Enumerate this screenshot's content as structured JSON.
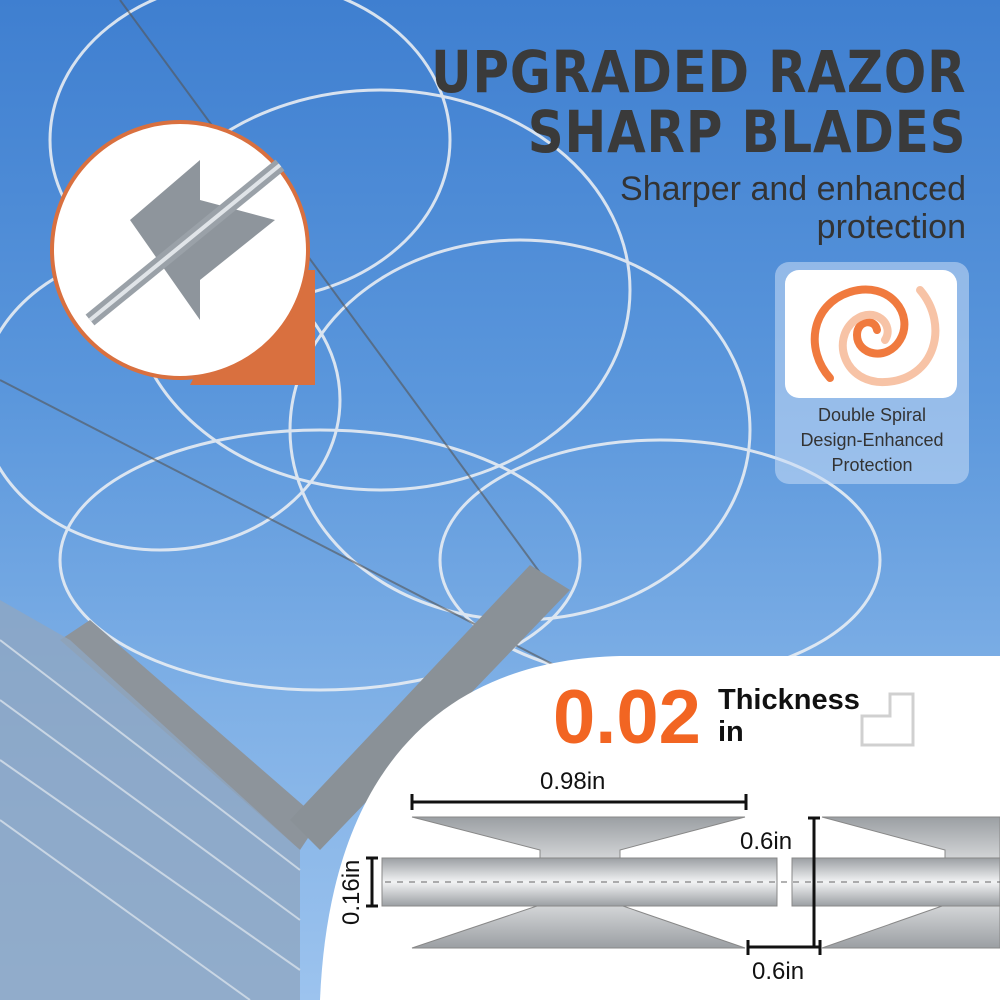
{
  "headline": {
    "line1": "UPGRADED RAZOR",
    "line2": "SHARP BLADES"
  },
  "subheadline": {
    "line1": "Sharper and enhanced",
    "line2": "protection"
  },
  "feature_card": {
    "icon": "double-spiral-icon",
    "caption_lines": [
      "Double Spiral",
      "Design-Enhanced",
      "Protection"
    ]
  },
  "thickness": {
    "value": "0.02",
    "label": "Thickness",
    "unit": "in",
    "icon": "ruler-square-icon"
  },
  "dimensions": {
    "blade_length": "0.98in",
    "blade_height": "0.6in",
    "blade_gap": "0.6in",
    "wire_height": "0.16in"
  },
  "colors": {
    "accent": "#f26522",
    "sky": "#5b97dc",
    "text": "#3a3a3a"
  }
}
